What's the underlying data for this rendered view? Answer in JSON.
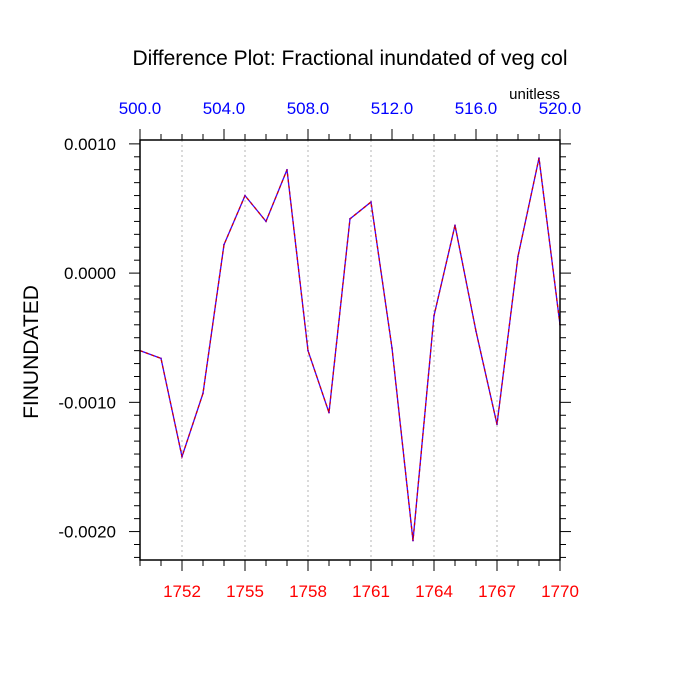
{
  "chart_data": {
    "type": "line",
    "title": "Difference Plot: Fractional inundated of veg col",
    "ylabel": "FINUNDATED",
    "top_axis_units": "unitless",
    "x": [
      1750,
      1751,
      1752,
      1753,
      1754,
      1755,
      1756,
      1757,
      1758,
      1759,
      1760,
      1761,
      1762,
      1763,
      1764,
      1765,
      1766,
      1767,
      1768,
      1769,
      1770
    ],
    "values": [
      -0.0006,
      -0.00066,
      -0.00142,
      -0.00093,
      0.00022,
      0.0006,
      0.0004,
      0.0008,
      -0.0006,
      -0.00108,
      0.00042,
      0.00055,
      -0.00058,
      -0.00207,
      -0.00033,
      0.00037,
      -0.00045,
      -0.00117,
      0.00013,
      0.00089,
      -0.0004
    ],
    "xlim": [
      1750,
      1770
    ],
    "ylim": [
      -0.00222,
      0.00103
    ],
    "bottom_ticks": [
      "1752",
      "1755",
      "1758",
      "1761",
      "1764",
      "1767",
      "1770"
    ],
    "bottom_tick_values": [
      1752,
      1755,
      1758,
      1761,
      1764,
      1767,
      1770
    ],
    "top_ticks": [
      "500.0",
      "504.0",
      "508.0",
      "512.0",
      "516.0",
      "520.0"
    ],
    "top_tick_values": [
      500,
      504,
      508,
      512,
      516,
      520
    ],
    "top_range": [
      500,
      520
    ],
    "y_ticks": [
      "0.0010",
      "0.0000",
      "-0.0010",
      "-0.0020"
    ],
    "y_tick_values": [
      0.001,
      0.0,
      -0.001,
      -0.002
    ],
    "colors": {
      "line": "#7a00a8",
      "bottom_tick_labels": "#ff0000",
      "top_tick_labels": "#0000ff",
      "grid": "#b4b4b4",
      "axis": "#000000"
    }
  }
}
